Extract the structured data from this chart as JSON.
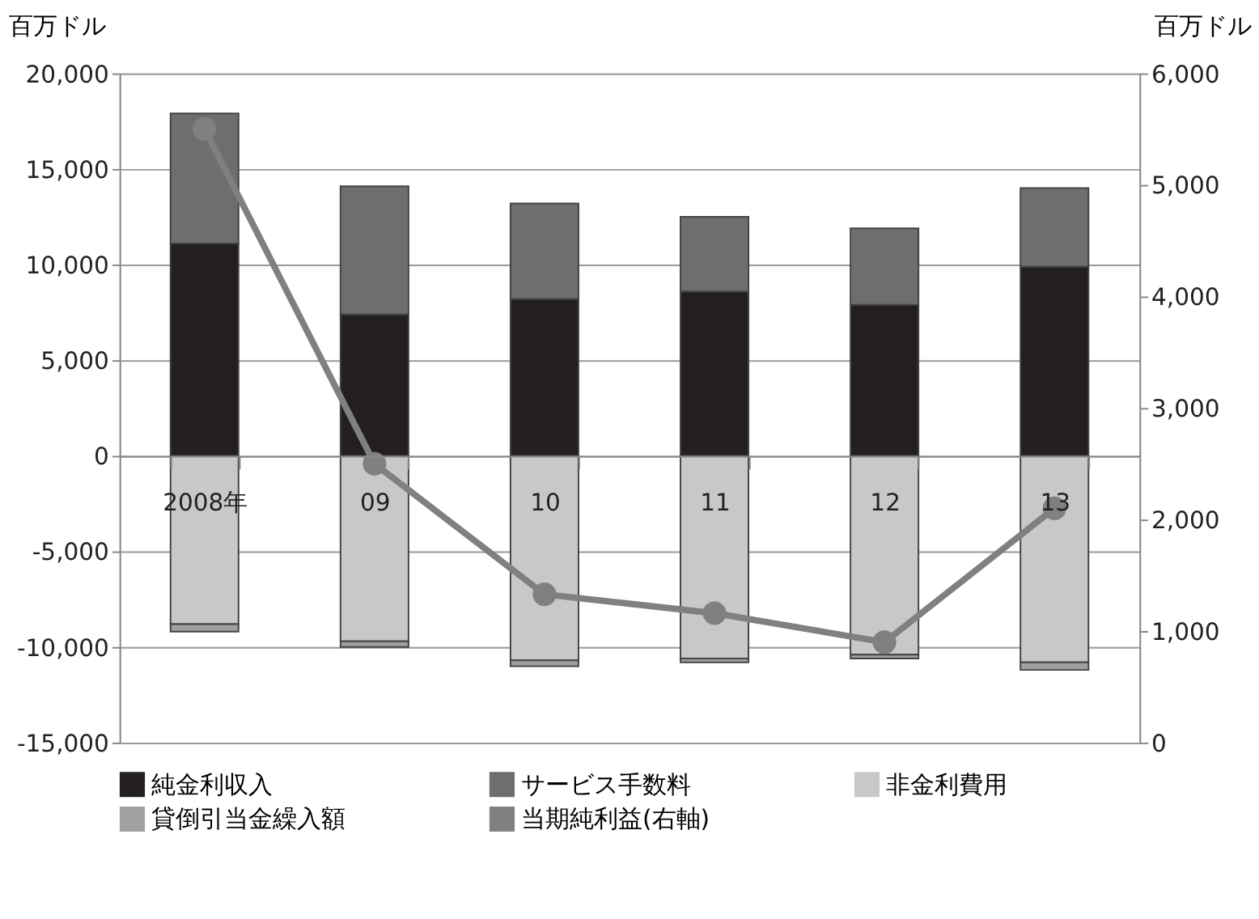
{
  "chart_data": {
    "type": "bar",
    "stacked": true,
    "categories": [
      "2008年",
      "09",
      "10",
      "11",
      "12",
      "13"
    ],
    "series": [
      {
        "name": "純金利収入",
        "color": "#231f20",
        "values": [
          11100,
          7400,
          8200,
          8600,
          7900,
          9900
        ]
      },
      {
        "name": "サービス手数料",
        "color": "#6e6e6e",
        "values": [
          6800,
          6700,
          5000,
          3900,
          4000,
          4100
        ]
      },
      {
        "name": "非金利費用",
        "color": "#c8c8c8",
        "values": [
          -8800,
          -9700,
          -10700,
          -10600,
          -10400,
          -10800
        ]
      },
      {
        "name": "貸倒引当金繰入額",
        "color": "#a0a0a0",
        "values": [
          -400,
          -300,
          -300,
          -200,
          -200,
          -400
        ]
      },
      {
        "name": "当期純利益(右軸)",
        "type": "line",
        "axis": "y2",
        "color": "#808080",
        "values": [
          5500,
          2500,
          1330,
          1160,
          900,
          2100
        ]
      }
    ],
    "ylabel": "百万ドル",
    "y2label": "百万ドル",
    "ylim": [
      -15000,
      20000
    ],
    "yticks": [
      {
        "value": -15000,
        "label": "-15,000"
      },
      {
        "value": -10000,
        "label": "-10,000"
      },
      {
        "value": -5000,
        "label": "-5,000"
      },
      0,
      {
        "value": 5000,
        "label": "5,000"
      },
      {
        "value": 10000,
        "label": "10,000"
      },
      {
        "value": 15000,
        "label": "15,000"
      },
      {
        "value": 20000,
        "label": "20,000"
      }
    ],
    "y2lim": [
      0,
      6000
    ],
    "y2ticks": [
      0,
      {
        "value": 1000,
        "label": "1,000"
      },
      {
        "value": 2000,
        "label": "2,000"
      },
      {
        "value": 3000,
        "label": "3,000"
      },
      {
        "value": 4000,
        "label": "4,000"
      },
      {
        "value": 5000,
        "label": "5,000"
      },
      {
        "value": 6000,
        "label": "6,000"
      }
    ],
    "grid": "y",
    "legend": "bottom",
    "marker": "circle",
    "line_style": "solid"
  }
}
